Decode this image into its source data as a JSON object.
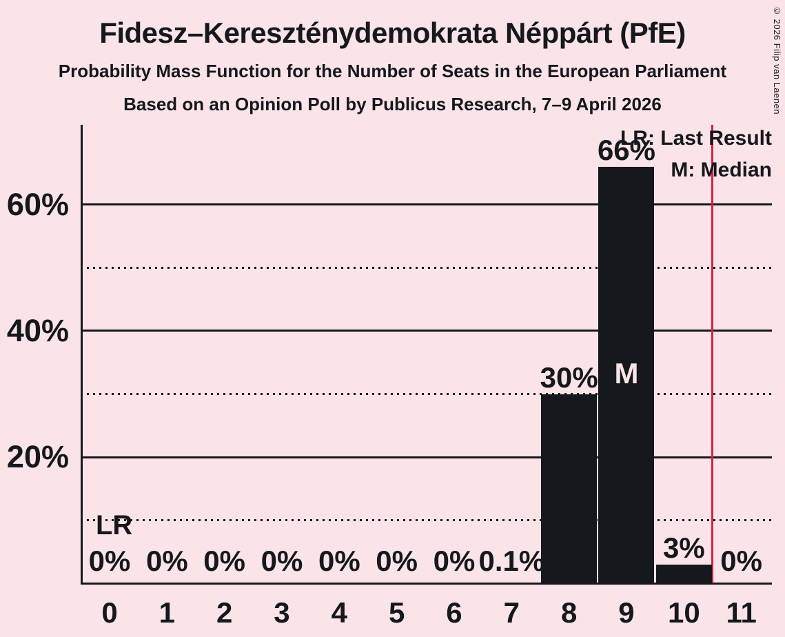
{
  "header": {
    "title": "Fidesz–Kereszténydemokrata Néppárt (PfE)",
    "subtitle1": "Probability Mass Function for the Number of Seats in the European Parliament",
    "subtitle2": "Based on an Opinion Poll by Publicus Research, 7–9 April 2026",
    "copyright": "© 2026 Filip van Laenen"
  },
  "legend": {
    "lr": "LR: Last Result",
    "m": "M: Median"
  },
  "annotations": {
    "lr_marker": "LR",
    "median_marker": "M"
  },
  "colors": {
    "background": "#fbe4e8",
    "bar": "#15181c",
    "text": "#15181c",
    "red_line": "#dc1c48",
    "median_text": "#fbe4e8"
  },
  "chart_data": {
    "type": "bar",
    "title": "Probability Mass Function for the Number of Seats in the European Parliament",
    "categories": [
      0,
      1,
      2,
      3,
      4,
      5,
      6,
      7,
      8,
      9,
      10,
      11
    ],
    "values": [
      0,
      0,
      0,
      0,
      0,
      0,
      0,
      0.1,
      30,
      66,
      3,
      0
    ],
    "value_labels": [
      "0%",
      "0%",
      "0%",
      "0%",
      "0%",
      "0%",
      "0%",
      "0.1%",
      "30%",
      "66%",
      "3%",
      "0%"
    ],
    "ylim": [
      0,
      72.6
    ],
    "yticks": [
      {
        "value": 20,
        "label": "20%"
      },
      {
        "value": 40,
        "label": "40%"
      },
      {
        "value": 60,
        "label": "60%"
      }
    ],
    "solid_gridlines": [
      20,
      40,
      60
    ],
    "dotted_gridlines": [
      10,
      30,
      50
    ],
    "grid": true,
    "legend_position": "top-right",
    "last_result_line_x": 10.5,
    "median_category": 9,
    "lr_marker_category": 0
  }
}
